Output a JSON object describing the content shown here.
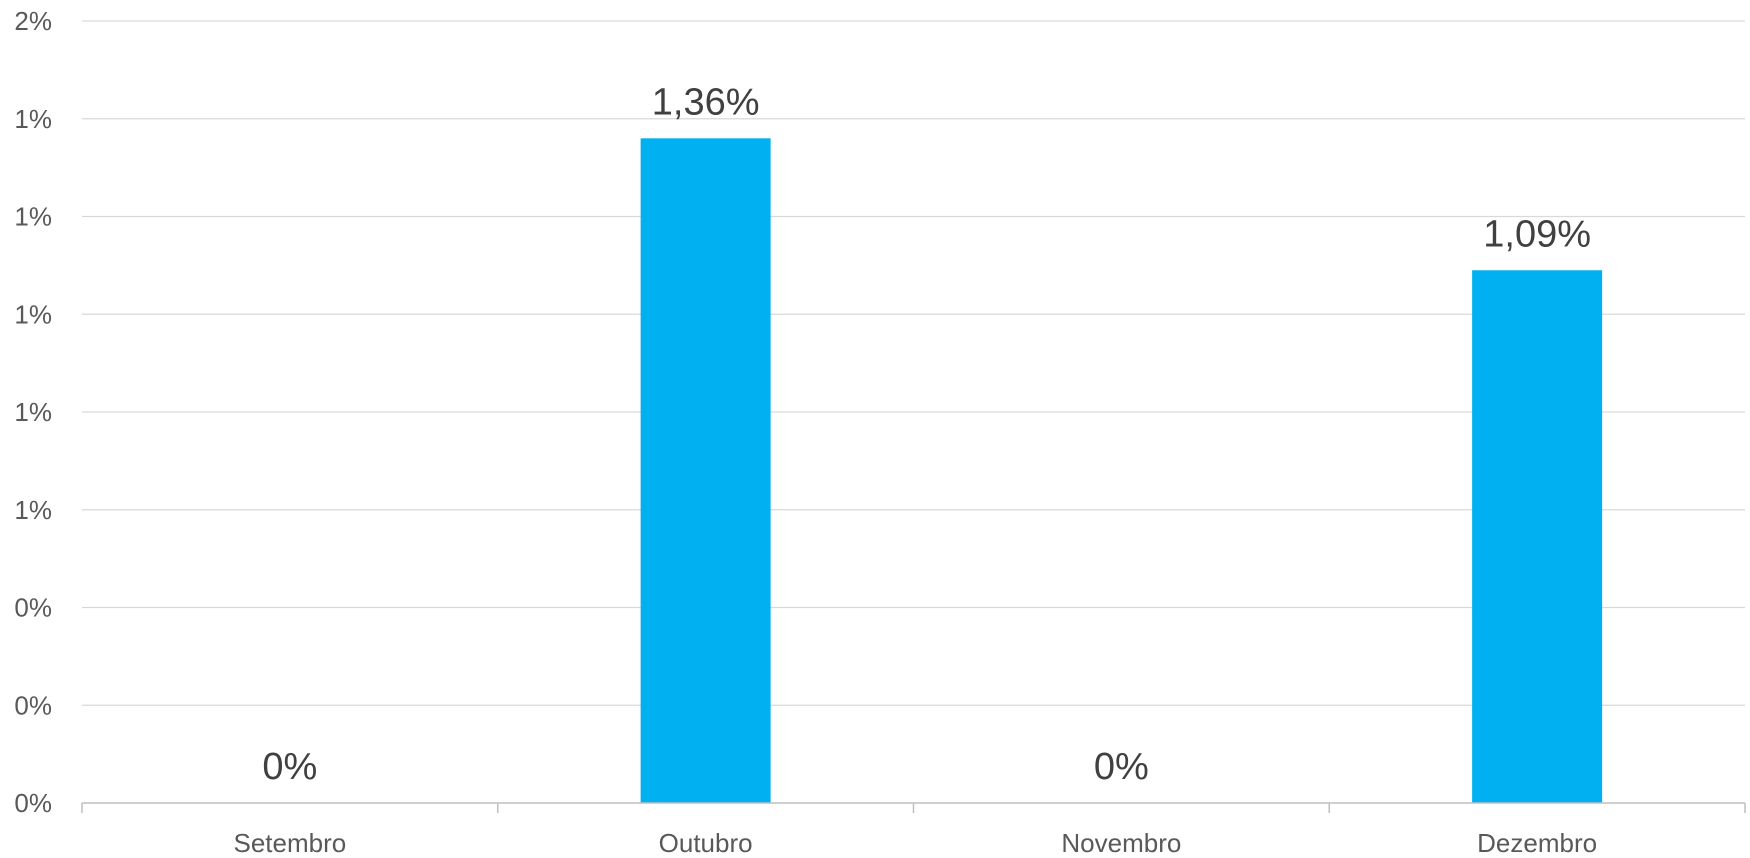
{
  "chart_data": {
    "type": "bar",
    "categories": [
      "Setembro",
      "Outubro",
      "Novembro",
      "Dezembro"
    ],
    "series": [
      {
        "values": [
          0,
          1.36,
          0,
          1.09
        ],
        "data_labels": [
          "0%",
          "1,36%",
          "0%",
          "1,09%"
        ],
        "color": "#00B0F0"
      }
    ],
    "y_ticks": [
      0,
      0.2,
      0.4,
      0.6,
      0.8,
      1.0,
      1.2,
      1.4,
      1.6
    ],
    "y_tick_labels": [
      "0%",
      "0%",
      "0%",
      "1%",
      "1%",
      "1%",
      "1%",
      "1%",
      "2%"
    ],
    "ylim": [
      0,
      1.6
    ],
    "grid": true,
    "legend": "none",
    "title": "",
    "xlabel": "",
    "ylabel": ""
  },
  "colors": {
    "bar": "#00B0F0",
    "grid": "#D9D9D9",
    "axis": "#BFBFBF"
  }
}
